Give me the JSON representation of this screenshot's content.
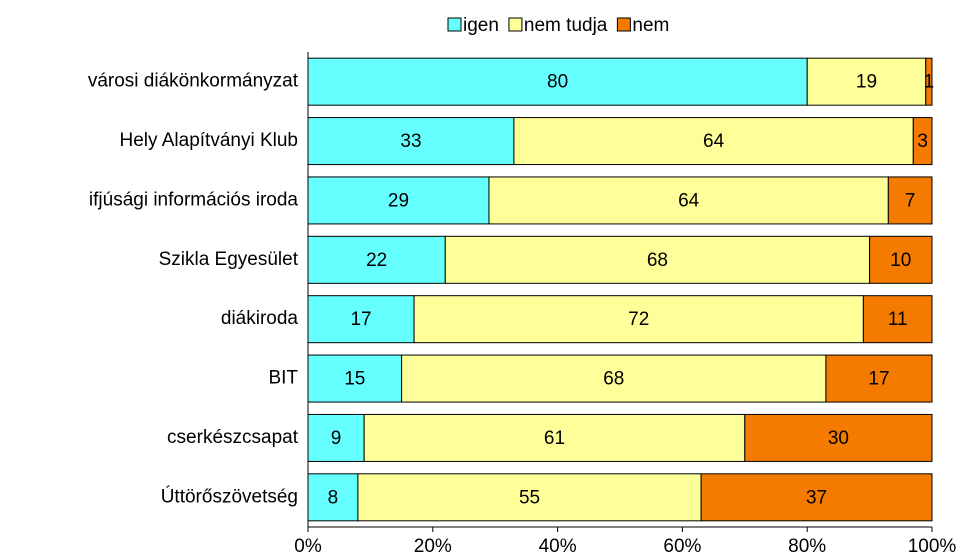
{
  "chart_data": {
    "type": "stacked-bar-horizontal",
    "categories": [
      "városi diákönkormányzat",
      "Hely Alapítványi Klub",
      "ifjúsági információs iroda",
      "Szikla Egyesület",
      "diákiroda",
      "BIT",
      "cserkészcsapat",
      "Úttörőszövetség"
    ],
    "series": [
      {
        "name": "igen",
        "color": "#66ffff",
        "values": [
          80,
          33,
          29,
          22,
          17,
          15,
          9,
          8
        ]
      },
      {
        "name": "nem tudja",
        "color": "#ffff99",
        "values": [
          19,
          64,
          64,
          68,
          72,
          68,
          61,
          55
        ]
      },
      {
        "name": "nem",
        "color": "#f47a00",
        "values": [
          1,
          3,
          7,
          10,
          11,
          17,
          30,
          37
        ]
      }
    ],
    "xlim": [
      0,
      100
    ],
    "xticks": [
      {
        "value": 0,
        "label": "0%"
      },
      {
        "value": 20,
        "label": "20%"
      },
      {
        "value": 40,
        "label": "40%"
      },
      {
        "value": 60,
        "label": "60%"
      },
      {
        "value": 80,
        "label": "80%"
      },
      {
        "value": 100,
        "label": "100%"
      }
    ],
    "legend": "top"
  }
}
